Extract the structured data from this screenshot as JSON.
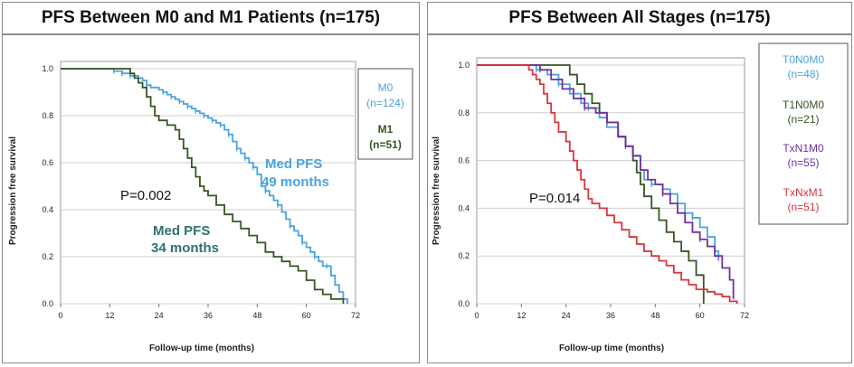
{
  "panels": [
    {
      "title": "PFS Between M0 and M1 Patients (n=175)",
      "chart_data": {
        "type": "line",
        "subtype": "kaplan-meier",
        "xlabel": "Follow-up time (months)",
        "ylabel": "Progression free survival",
        "xlim": [
          0,
          72
        ],
        "ylim": [
          0,
          1
        ],
        "xticks": [
          0,
          12,
          24,
          36,
          48,
          60,
          72
        ],
        "yticks": [
          0.0,
          0.2,
          0.4,
          0.6,
          0.8,
          1.0
        ],
        "grid": "horizontal",
        "legend_position": "right",
        "legend": [
          {
            "name": "M0",
            "n": "(n=124)",
            "color": "#4aa3df"
          },
          {
            "name": "M1",
            "n": "(n=51)",
            "color": "#375623"
          }
        ],
        "annotations": {
          "p_value": "P=0.002",
          "med_m0_line1": "Med PFS",
          "med_m0_line2": "49 months",
          "med_m1_line1": "Med PFS",
          "med_m1_line2": "34 months",
          "med_m0_color": "#4aa3df",
          "med_m1_color": "#2e7171"
        },
        "series": [
          {
            "name": "M0",
            "color": "#4aa3df",
            "points": [
              [
                0,
                1.0
              ],
              [
                12,
                1.0
              ],
              [
                13,
                0.99
              ],
              [
                15,
                0.98
              ],
              [
                17,
                0.97
              ],
              [
                19,
                0.96
              ],
              [
                20,
                0.95
              ],
              [
                21,
                0.93
              ],
              [
                22,
                0.92
              ],
              [
                24,
                0.91
              ],
              [
                25,
                0.9
              ],
              [
                26,
                0.89
              ],
              [
                27,
                0.88
              ],
              [
                28,
                0.87
              ],
              [
                29,
                0.86
              ],
              [
                30,
                0.85
              ],
              [
                31,
                0.84
              ],
              [
                32,
                0.83
              ],
              [
                33,
                0.82
              ],
              [
                34,
                0.81
              ],
              [
                35,
                0.8
              ],
              [
                36,
                0.79
              ],
              [
                37,
                0.78
              ],
              [
                38,
                0.77
              ],
              [
                39,
                0.76
              ],
              [
                40,
                0.74
              ],
              [
                41,
                0.72
              ],
              [
                42,
                0.69
              ],
              [
                43,
                0.66
              ],
              [
                44,
                0.64
              ],
              [
                45,
                0.62
              ],
              [
                46,
                0.6
              ],
              [
                47,
                0.58
              ],
              [
                48,
                0.55
              ],
              [
                49,
                0.5
              ],
              [
                50,
                0.48
              ],
              [
                51,
                0.46
              ],
              [
                52,
                0.44
              ],
              [
                53,
                0.42
              ],
              [
                54,
                0.39
              ],
              [
                55,
                0.36
              ],
              [
                56,
                0.33
              ],
              [
                57,
                0.31
              ],
              [
                58,
                0.29
              ],
              [
                59,
                0.26
              ],
              [
                60,
                0.24
              ],
              [
                61,
                0.22
              ],
              [
                62,
                0.2
              ],
              [
                63,
                0.18
              ],
              [
                64,
                0.16
              ],
              [
                66,
                0.12
              ],
              [
                67,
                0.08
              ],
              [
                68,
                0.05
              ],
              [
                69,
                0.02
              ],
              [
                70,
                0.0
              ]
            ],
            "censor": [
              13,
              15,
              17,
              21,
              25,
              27,
              29,
              31,
              33,
              35,
              37,
              39,
              41,
              43,
              45,
              47,
              50,
              53,
              56,
              59,
              62,
              65
            ]
          },
          {
            "name": "M1",
            "color": "#375623",
            "points": [
              [
                0,
                1.0
              ],
              [
                16,
                1.0
              ],
              [
                17,
                0.98
              ],
              [
                18,
                0.96
              ],
              [
                19,
                0.94
              ],
              [
                20,
                0.92
              ],
              [
                21,
                0.88
              ],
              [
                22,
                0.84
              ],
              [
                23,
                0.8
              ],
              [
                24,
                0.78
              ],
              [
                26,
                0.76
              ],
              [
                28,
                0.74
              ],
              [
                29,
                0.7
              ],
              [
                30,
                0.66
              ],
              [
                31,
                0.62
              ],
              [
                32,
                0.58
              ],
              [
                33,
                0.54
              ],
              [
                34,
                0.5
              ],
              [
                35,
                0.48
              ],
              [
                36,
                0.46
              ],
              [
                38,
                0.42
              ],
              [
                40,
                0.38
              ],
              [
                42,
                0.35
              ],
              [
                44,
                0.32
              ],
              [
                46,
                0.29
              ],
              [
                48,
                0.26
              ],
              [
                50,
                0.22
              ],
              [
                52,
                0.2
              ],
              [
                54,
                0.18
              ],
              [
                56,
                0.16
              ],
              [
                58,
                0.14
              ],
              [
                60,
                0.1
              ],
              [
                62,
                0.06
              ],
              [
                64,
                0.04
              ],
              [
                66,
                0.02
              ],
              [
                69,
                0.0
              ]
            ],
            "censor": []
          }
        ]
      }
    },
    {
      "title": "PFS Between All Stages (n=175)",
      "chart_data": {
        "type": "line",
        "subtype": "kaplan-meier",
        "xlabel": "Follow-up time (months)",
        "ylabel": "Progression free survival",
        "xlim": [
          0,
          72
        ],
        "ylim": [
          0,
          1
        ],
        "xticks": [
          0,
          12,
          24,
          36,
          48,
          60,
          72
        ],
        "yticks": [
          0.0,
          0.2,
          0.4,
          0.6,
          0.8,
          1.0
        ],
        "grid": "horizontal",
        "legend_position": "right",
        "legend": [
          {
            "name": "T0N0M0",
            "n": "(n=48)",
            "color": "#4aa3df"
          },
          {
            "name": "T1N0M0",
            "n": "(n=21)",
            "color": "#375623"
          },
          {
            "name": "TxN1M0",
            "n": "(n=55)",
            "color": "#7030a0"
          },
          {
            "name": "TxNxM1",
            "n": "(n=51)",
            "color": "#d9363e"
          }
        ],
        "annotations": {
          "p_value": "P=0.014"
        },
        "series": [
          {
            "name": "T0N0M0",
            "color": "#4aa3df",
            "points": [
              [
                0,
                1.0
              ],
              [
                14,
                1.0
              ],
              [
                16,
                0.98
              ],
              [
                19,
                0.96
              ],
              [
                22,
                0.92
              ],
              [
                25,
                0.88
              ],
              [
                28,
                0.84
              ],
              [
                30,
                0.82
              ],
              [
                33,
                0.78
              ],
              [
                35,
                0.74
              ],
              [
                38,
                0.7
              ],
              [
                40,
                0.66
              ],
              [
                42,
                0.62
              ],
              [
                44,
                0.56
              ],
              [
                45,
                0.52
              ],
              [
                47,
                0.5
              ],
              [
                50,
                0.48
              ],
              [
                52,
                0.46
              ],
              [
                54,
                0.42
              ],
              [
                56,
                0.38
              ],
              [
                58,
                0.36
              ],
              [
                60,
                0.32
              ],
              [
                62,
                0.28
              ],
              [
                64,
                0.22
              ],
              [
                65,
                0.18
              ]
            ],
            "censor": [
              16,
              22,
              30,
              40,
              47,
              52,
              58
            ]
          },
          {
            "name": "T1N0M0",
            "color": "#375623",
            "points": [
              [
                0,
                1.0
              ],
              [
                24,
                1.0
              ],
              [
                25,
                0.96
              ],
              [
                27,
                0.92
              ],
              [
                29,
                0.88
              ],
              [
                31,
                0.84
              ],
              [
                33,
                0.8
              ],
              [
                35,
                0.76
              ],
              [
                38,
                0.7
              ],
              [
                40,
                0.66
              ],
              [
                42,
                0.6
              ],
              [
                43,
                0.55
              ],
              [
                44,
                0.5
              ],
              [
                45,
                0.45
              ],
              [
                47,
                0.4
              ],
              [
                49,
                0.35
              ],
              [
                51,
                0.3
              ],
              [
                53,
                0.26
              ],
              [
                55,
                0.22
              ],
              [
                57,
                0.18
              ],
              [
                59,
                0.12
              ],
              [
                61,
                0.0
              ]
            ],
            "censor": []
          },
          {
            "name": "TxN1M0",
            "color": "#7030a0",
            "points": [
              [
                0,
                1.0
              ],
              [
                14,
                1.0
              ],
              [
                17,
                0.98
              ],
              [
                20,
                0.94
              ],
              [
                23,
                0.9
              ],
              [
                26,
                0.86
              ],
              [
                29,
                0.82
              ],
              [
                32,
                0.8
              ],
              [
                35,
                0.76
              ],
              [
                38,
                0.7
              ],
              [
                40,
                0.66
              ],
              [
                42,
                0.62
              ],
              [
                44,
                0.56
              ],
              [
                46,
                0.52
              ],
              [
                48,
                0.5
              ],
              [
                50,
                0.46
              ],
              [
                52,
                0.42
              ],
              [
                54,
                0.38
              ],
              [
                56,
                0.34
              ],
              [
                58,
                0.3
              ],
              [
                60,
                0.27
              ],
              [
                62,
                0.24
              ],
              [
                64,
                0.2
              ],
              [
                66,
                0.15
              ],
              [
                68,
                0.1
              ],
              [
                69,
                0.02
              ]
            ],
            "censor": [
              17,
              29,
              40,
              50,
              60
            ]
          },
          {
            "name": "TxNxM1",
            "color": "#d9363e",
            "points": [
              [
                0,
                1.0
              ],
              [
                13,
                1.0
              ],
              [
                14,
                0.98
              ],
              [
                15,
                0.96
              ],
              [
                16,
                0.94
              ],
              [
                17,
                0.92
              ],
              [
                18,
                0.88
              ],
              [
                19,
                0.84
              ],
              [
                20,
                0.8
              ],
              [
                21,
                0.76
              ],
              [
                22,
                0.72
              ],
              [
                24,
                0.68
              ],
              [
                25,
                0.64
              ],
              [
                26,
                0.6
              ],
              [
                27,
                0.56
              ],
              [
                28,
                0.52
              ],
              [
                29,
                0.48
              ],
              [
                30,
                0.44
              ],
              [
                31,
                0.42
              ],
              [
                33,
                0.4
              ],
              [
                35,
                0.37
              ],
              [
                37,
                0.34
              ],
              [
                39,
                0.31
              ],
              [
                41,
                0.28
              ],
              [
                43,
                0.25
              ],
              [
                45,
                0.22
              ],
              [
                47,
                0.2
              ],
              [
                49,
                0.18
              ],
              [
                51,
                0.16
              ],
              [
                53,
                0.13
              ],
              [
                55,
                0.1
              ],
              [
                57,
                0.08
              ],
              [
                59,
                0.06
              ],
              [
                62,
                0.05
              ],
              [
                64,
                0.04
              ],
              [
                66,
                0.03
              ],
              [
                68,
                0.01
              ],
              [
                70,
                0.0
              ]
            ],
            "censor": []
          }
        ]
      }
    }
  ]
}
